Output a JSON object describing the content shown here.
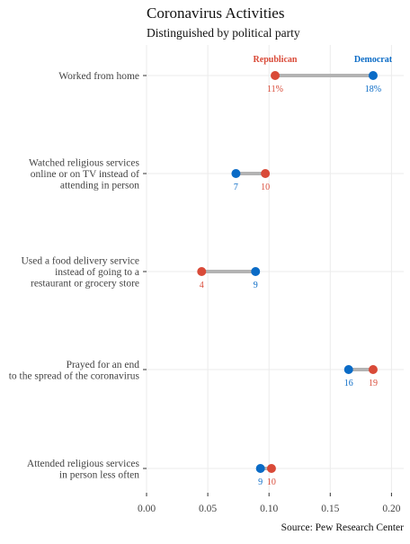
{
  "chart_data": {
    "type": "dumbbell",
    "title": "Coronavirus Activities",
    "subtitle": "Distinguished by political party",
    "caption": "Source: Pew Research Center",
    "xlim": [
      0,
      0.21
    ],
    "x_ticks": [
      0.0,
      0.05,
      0.1,
      0.15,
      0.2
    ],
    "x_tick_labels": [
      "0.00",
      "0.05",
      "0.10",
      "0.15",
      "0.20"
    ],
    "grid": true,
    "colors": {
      "republican": "#d94a38",
      "democrat": "#0a6bc6",
      "segment": "#b3b3b3",
      "grid": "#ebebeb"
    },
    "legend_labels": {
      "republican": "Republican",
      "democrat": "Democrat"
    },
    "categories": [
      {
        "label_lines": [
          "Worked from home"
        ],
        "republican": 0.105,
        "democrat": 0.185,
        "republican_label": "11%",
        "democrat_label": "18%"
      },
      {
        "label_lines": [
          "Watched religious services",
          "online or on TV instead of",
          "attending in person"
        ],
        "republican": 0.097,
        "democrat": 0.073,
        "republican_label": "10",
        "democrat_label": "7"
      },
      {
        "label_lines": [
          "Used a food delivery service",
          "instead of going to a",
          "restaurant or grocery store"
        ],
        "republican": 0.045,
        "democrat": 0.089,
        "republican_label": "4",
        "democrat_label": "9"
      },
      {
        "label_lines": [
          "Prayed for an end",
          "to the spread of the coronavirus"
        ],
        "republican": 0.185,
        "democrat": 0.165,
        "republican_label": "19",
        "democrat_label": "16"
      },
      {
        "label_lines": [
          "Attended religious services",
          "in person less often"
        ],
        "republican": 0.102,
        "democrat": 0.093,
        "republican_label": "10",
        "democrat_label": "9"
      }
    ]
  }
}
